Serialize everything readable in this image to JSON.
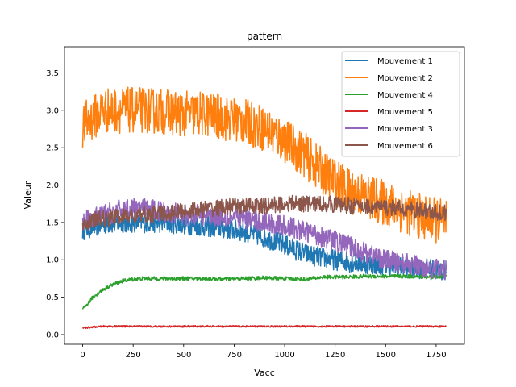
{
  "chart_data": {
    "type": "line",
    "title": "pattern",
    "xlabel": "Vacc",
    "ylabel": "Valeur",
    "xlim": [
      -90,
      1890
    ],
    "ylim": [
      -0.13,
      3.85
    ],
    "xticks": [
      0,
      250,
      500,
      750,
      1000,
      1250,
      1500,
      1750
    ],
    "yticks": [
      0.0,
      0.5,
      1.0,
      1.5,
      2.0,
      2.5,
      3.0,
      3.5
    ],
    "grid": false,
    "legend_position": "top-right",
    "series": [
      {
        "name": "Mouvement 1",
        "color": "#1f77b4",
        "noise": 0.1,
        "x": [
          0,
          100,
          200,
          300,
          400,
          500,
          600,
          700,
          800,
          900,
          1000,
          1100,
          1200,
          1300,
          1400,
          1500,
          1600,
          1700,
          1800
        ],
        "y": [
          1.4,
          1.48,
          1.5,
          1.5,
          1.5,
          1.48,
          1.45,
          1.42,
          1.38,
          1.3,
          1.2,
          1.08,
          1.02,
          0.98,
          0.95,
          0.93,
          0.9,
          0.88,
          0.85
        ]
      },
      {
        "name": "Mouvement 2",
        "color": "#ff7f0e",
        "noise": 0.22,
        "x": [
          0,
          100,
          200,
          300,
          400,
          500,
          600,
          700,
          800,
          900,
          1000,
          1100,
          1200,
          1300,
          1400,
          1500,
          1600,
          1700,
          1800
        ],
        "y": [
          2.8,
          3.0,
          3.0,
          3.0,
          2.98,
          2.95,
          2.95,
          2.9,
          2.85,
          2.75,
          2.6,
          2.4,
          2.15,
          1.95,
          1.85,
          1.75,
          1.65,
          1.55,
          1.5
        ]
      },
      {
        "name": "Mouvement 4",
        "color": "#2ca02c",
        "noise": 0.018,
        "x": [
          0,
          50,
          100,
          150,
          200,
          250,
          300,
          400,
          500,
          600,
          700,
          800,
          900,
          1000,
          1100,
          1200,
          1300,
          1400,
          1500,
          1600,
          1700,
          1800
        ],
        "y": [
          0.33,
          0.5,
          0.6,
          0.67,
          0.72,
          0.74,
          0.75,
          0.75,
          0.75,
          0.75,
          0.74,
          0.75,
          0.76,
          0.75,
          0.74,
          0.77,
          0.77,
          0.78,
          0.78,
          0.78,
          0.77,
          0.78
        ]
      },
      {
        "name": "Mouvement 5",
        "color": "#d62728",
        "noise": 0.008,
        "x": [
          0,
          50,
          100,
          200,
          400,
          600,
          800,
          1000,
          1200,
          1400,
          1600,
          1800
        ],
        "y": [
          0.09,
          0.1,
          0.11,
          0.11,
          0.11,
          0.11,
          0.11,
          0.11,
          0.11,
          0.11,
          0.11,
          0.11
        ]
      },
      {
        "name": "Mouvement 3",
        "color": "#9467bd",
        "noise": 0.1,
        "x": [
          0,
          100,
          200,
          300,
          400,
          500,
          600,
          700,
          800,
          900,
          1000,
          1100,
          1200,
          1300,
          1400,
          1500,
          1600,
          1700,
          1800
        ],
        "y": [
          1.5,
          1.6,
          1.68,
          1.68,
          1.65,
          1.6,
          1.6,
          1.58,
          1.55,
          1.5,
          1.45,
          1.38,
          1.3,
          1.2,
          1.1,
          1.0,
          0.95,
          0.9,
          0.85
        ]
      },
      {
        "name": "Mouvement 6",
        "color": "#8c564b",
        "noise": 0.08,
        "x": [
          0,
          100,
          200,
          300,
          400,
          500,
          600,
          700,
          800,
          900,
          1000,
          1100,
          1200,
          1300,
          1400,
          1500,
          1600,
          1700,
          1800
        ],
        "y": [
          1.5,
          1.55,
          1.58,
          1.6,
          1.62,
          1.65,
          1.68,
          1.7,
          1.72,
          1.72,
          1.75,
          1.75,
          1.75,
          1.73,
          1.72,
          1.7,
          1.68,
          1.65,
          1.62
        ]
      }
    ]
  }
}
